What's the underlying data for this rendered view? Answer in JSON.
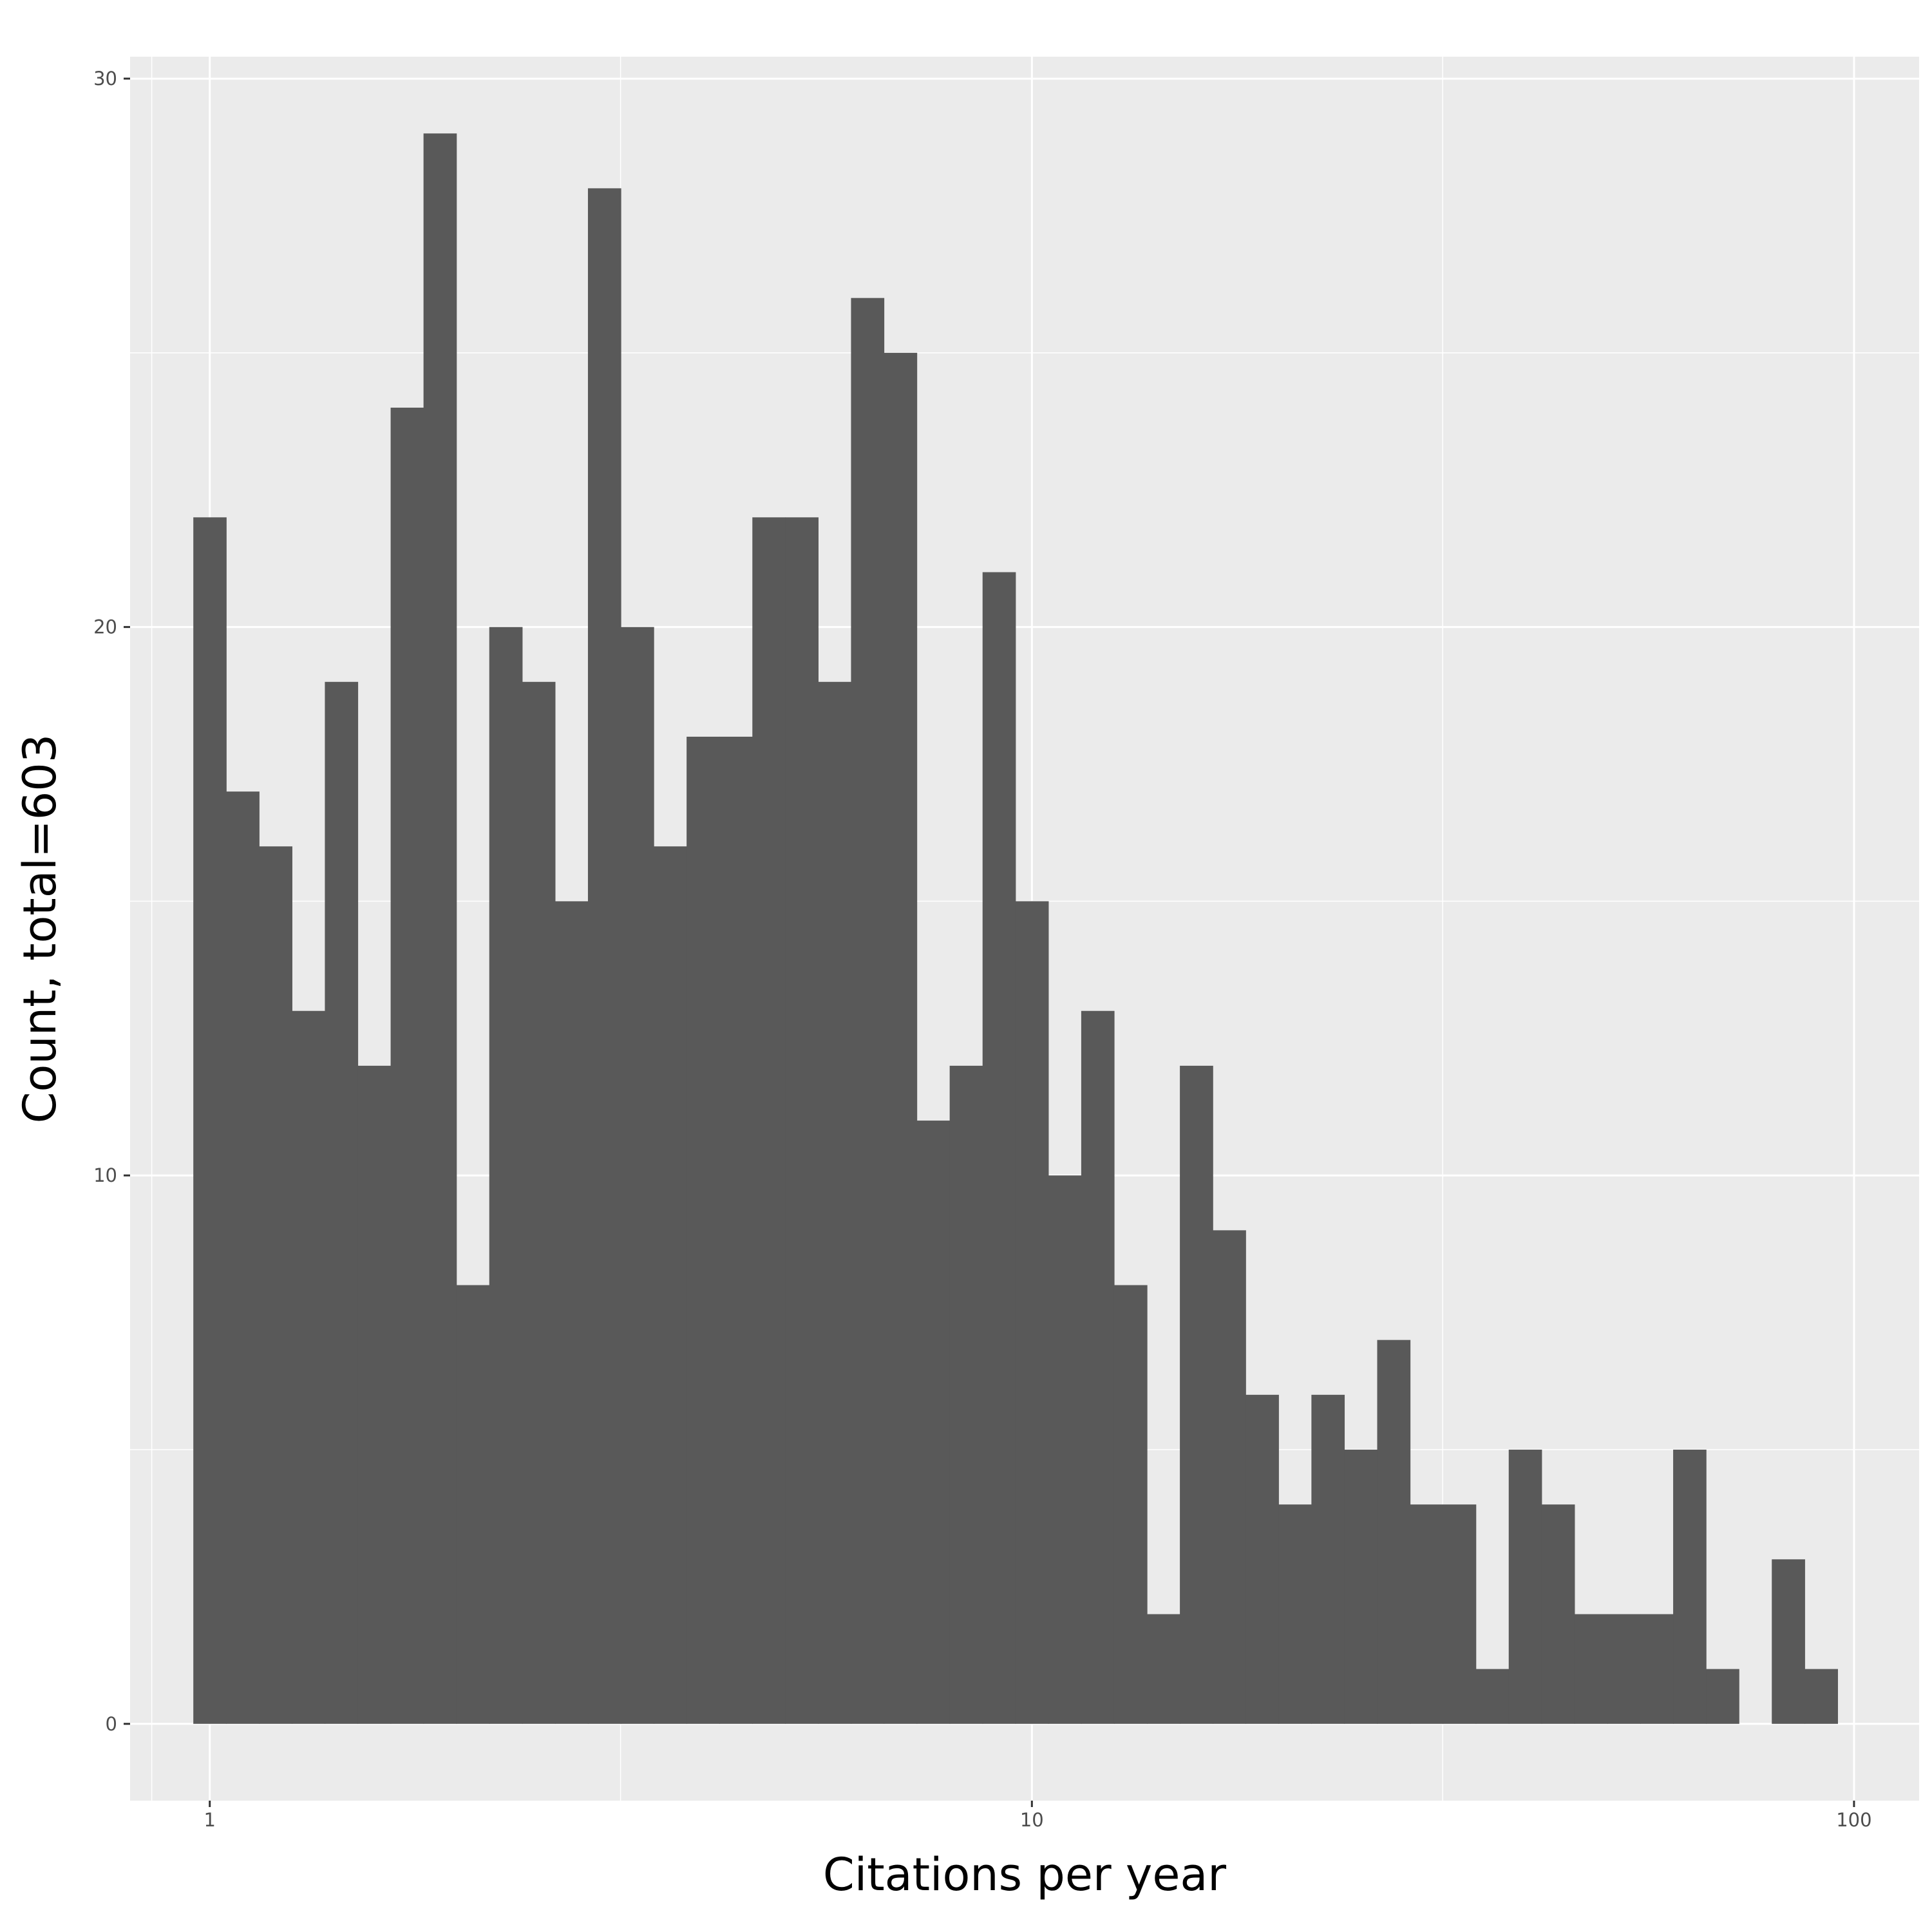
{
  "chart_data": {
    "type": "bar",
    "subtype": "histogram",
    "xlabel": "Citations per year",
    "ylabel": "Count, total=603",
    "x_scale": "log10",
    "xlim": [
      0.8,
      120
    ],
    "ylim": [
      -1.4,
      30.4
    ],
    "x_ticks": [
      {
        "value": 1,
        "label": "1"
      },
      {
        "value": 10,
        "label": "10"
      },
      {
        "value": 100,
        "label": "100"
      }
    ],
    "y_ticks": [
      {
        "value": 0,
        "label": "0"
      },
      {
        "value": 10,
        "label": "10"
      },
      {
        "value": 20,
        "label": "20"
      },
      {
        "value": 30,
        "label": "30"
      }
    ],
    "x_minor_breaks": [
      0.85,
      3.16,
      31.6
    ],
    "y_minor_breaks": [
      5,
      15,
      25
    ],
    "grid": true,
    "panel_background": "#ebebeb",
    "bar_color": "#595959",
    "grid_color": "#ffffff",
    "log10_bin_start": -0.02,
    "log10_bin_width": 0.04,
    "counts": [
      22,
      17,
      16,
      13,
      19,
      12,
      24,
      29,
      8,
      20,
      19,
      15,
      28,
      20,
      16,
      18,
      18,
      22,
      22,
      19,
      26,
      25,
      11,
      12,
      21,
      15,
      10,
      13,
      8,
      2,
      12,
      9,
      6,
      4,
      6,
      5,
      7,
      4,
      4,
      1,
      5,
      4,
      2,
      2,
      2,
      5,
      1,
      0,
      3,
      1
    ]
  }
}
